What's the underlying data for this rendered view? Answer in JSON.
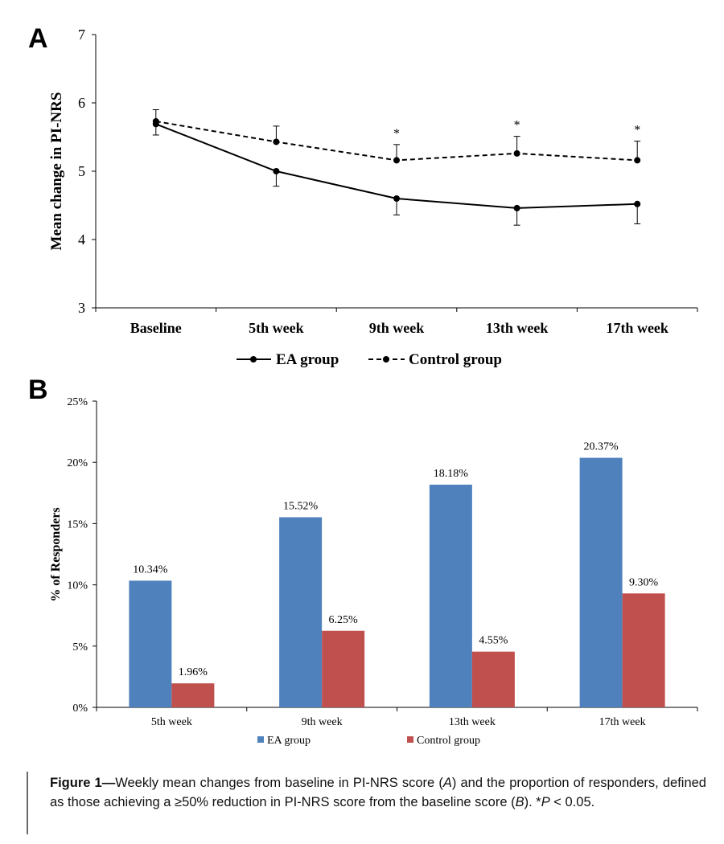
{
  "chart_data": [
    {
      "panel": "A",
      "type": "line",
      "categories": [
        "Baseline",
        "5th week",
        "9th week",
        "13th week",
        "17th week"
      ],
      "ylabel": "Mean change in PI-NRS",
      "xlabel": "",
      "ylim": [
        3,
        7
      ],
      "yticks": [
        "3",
        "4",
        "5",
        "6",
        "7"
      ],
      "series": [
        {
          "name": "EA group",
          "style": "solid",
          "values": [
            5.69,
            5.0,
            4.6,
            4.46,
            4.52
          ],
          "error_lower": [
            0.16,
            0.22,
            0.24,
            0.25,
            0.29
          ],
          "error_upper": [
            0,
            0,
            0,
            0,
            0
          ]
        },
        {
          "name": "Control group",
          "style": "dashed",
          "values": [
            5.73,
            5.43,
            5.16,
            5.26,
            5.16
          ],
          "error_lower": [
            0,
            0,
            0,
            0,
            0
          ],
          "error_upper": [
            0.17,
            0.23,
            0.23,
            0.25,
            0.28
          ]
        }
      ],
      "annotations": [
        {
          "category": "9th week",
          "text": "*"
        },
        {
          "category": "13th week",
          "text": "*"
        },
        {
          "category": "17th week",
          "text": "*"
        }
      ],
      "legend": "bottom"
    },
    {
      "panel": "B",
      "type": "bar",
      "categories": [
        "5th week",
        "9th week",
        "13th week",
        "17th week"
      ],
      "ylabel": "% of Responders",
      "xlabel": "",
      "ylim": [
        0,
        25
      ],
      "yticks": [
        "0%",
        "5%",
        "10%",
        "15%",
        "20%",
        "25%"
      ],
      "series": [
        {
          "name": "EA group",
          "color": "#4f81bd",
          "values": [
            10.34,
            15.52,
            18.18,
            20.37
          ],
          "labels": [
            "10.34%",
            "15.52%",
            "18.18%",
            "20.37%"
          ]
        },
        {
          "name": "Control group",
          "color": "#c0504d",
          "values": [
            1.96,
            6.25,
            4.55,
            9.3
          ],
          "labels": [
            "1.96%",
            "6.25%",
            "4.55%",
            "9.30%"
          ]
        }
      ],
      "legend": "bottom"
    }
  ],
  "caption": {
    "label": "Figure 1—",
    "text_1": "Weekly mean changes from baseline in PI-NRS score (",
    "ref_a": "A",
    "text_2": ") and the proportion of responders, defined as those achieving a ≥50% reduction in PI-NRS score from the baseline score (",
    "ref_b": "B",
    "text_3": "). *",
    "p_symbol": "P",
    "text_4": " < 0.05."
  }
}
